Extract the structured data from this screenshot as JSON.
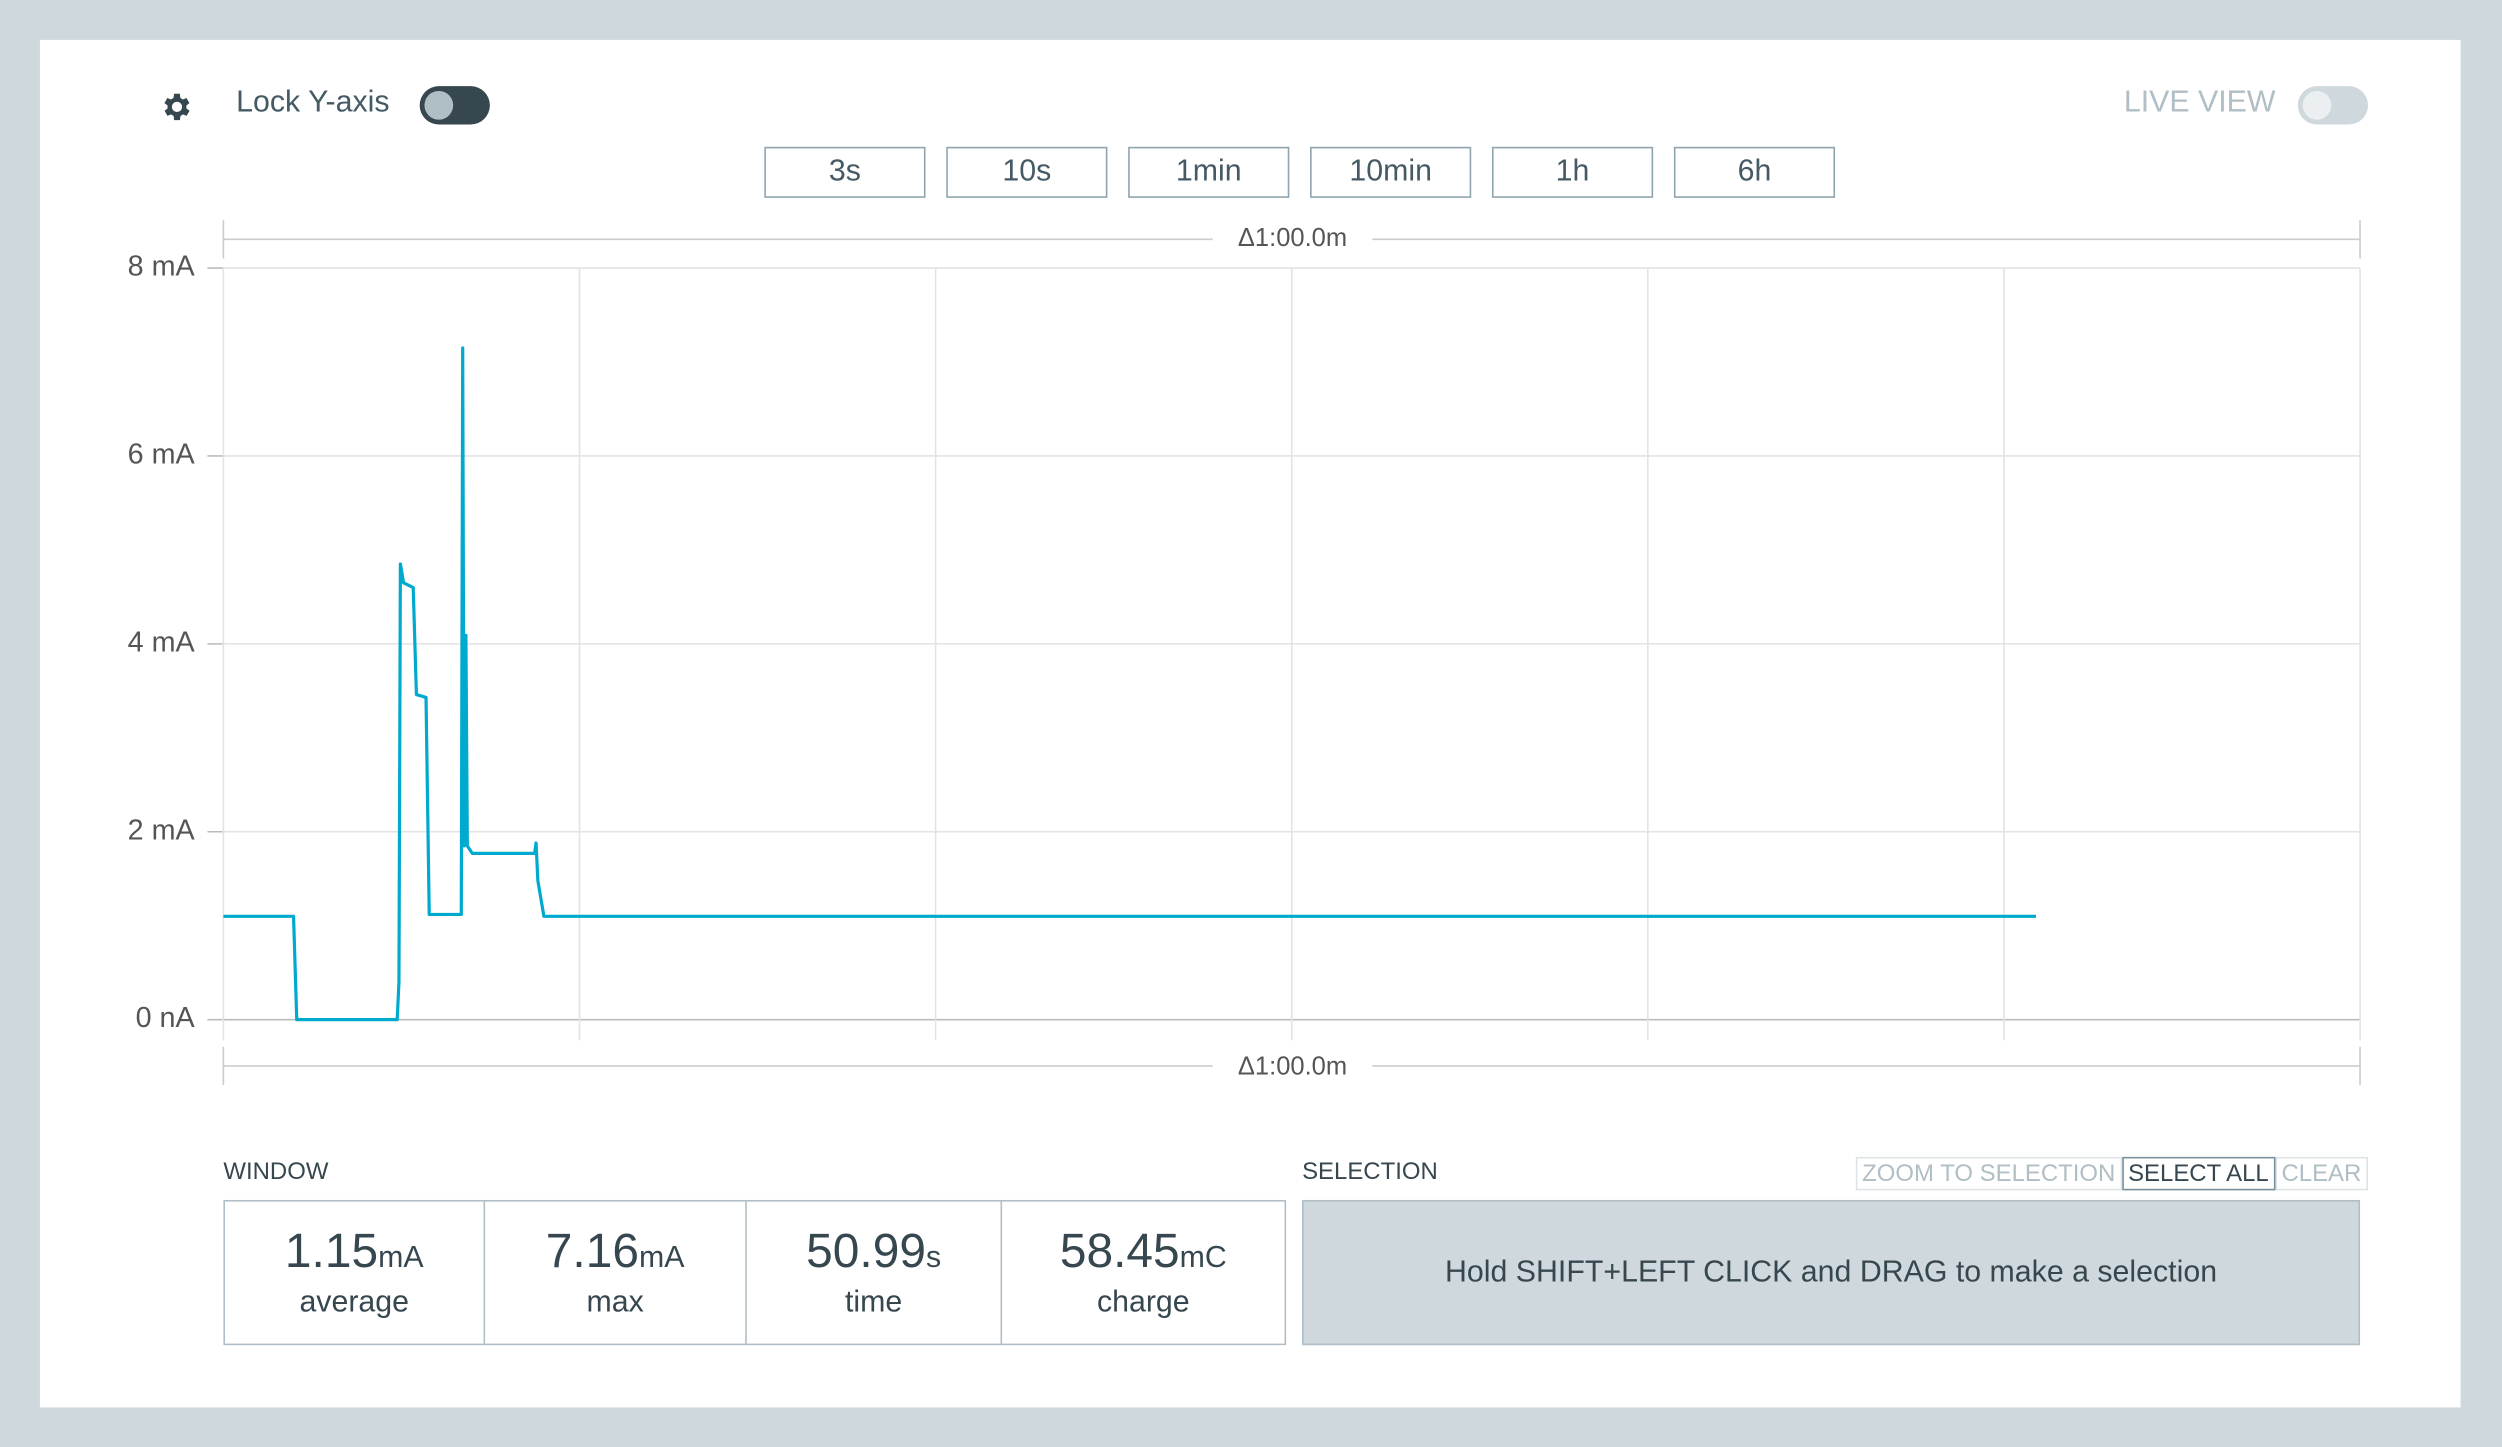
{
  "toolbar": {
    "lock_label": "Lock Y-axis",
    "live_view_label": "LIVE VIEW",
    "time_buttons": [
      "3s",
      "10s",
      "1min",
      "10min",
      "1h",
      "6h"
    ]
  },
  "chart_data": {
    "type": "line",
    "span_label": "Δ1:00.0m",
    "color": "#00a9ce",
    "x": [
      0,
      1.97,
      2.06,
      4.88,
      4.93,
      4.97,
      5.06,
      5.33,
      5.42,
      5.69,
      5.78,
      6.68,
      6.72,
      6.76,
      6.81,
      6.85,
      6.99,
      8.74,
      8.78,
      8.83,
      9.0,
      50.9
    ],
    "values": [
      1.1,
      1.1,
      0,
      0,
      0.4,
      4.85,
      4.65,
      4.6,
      3.46,
      3.43,
      1.12,
      1.12,
      7.15,
      1.85,
      4.09,
      1.85,
      1.77,
      1.77,
      1.88,
      1.48,
      1.1,
      1.1
    ],
    "xlim": [
      0,
      60
    ],
    "xticks": [
      0,
      10,
      20,
      30,
      40,
      50,
      60
    ],
    "ylim": [
      0,
      8
    ],
    "yticks": [
      {
        "value": 0,
        "label": "0 nA"
      },
      {
        "value": 2,
        "label": "2 mA"
      },
      {
        "value": 4,
        "label": "4 mA"
      },
      {
        "value": 6,
        "label": "6 mA"
      },
      {
        "value": 8,
        "label": "8 mA"
      }
    ],
    "grid": true
  },
  "window": {
    "title": "WINDOW",
    "stats": [
      {
        "value": 1.15,
        "unit": "mA",
        "label": "average"
      },
      {
        "value": 7.16,
        "unit": "mA",
        "label": "max"
      },
      {
        "value": 50.99,
        "unit": "s",
        "label": "time"
      },
      {
        "value": 58.45,
        "unit": "mC",
        "label": "charge"
      }
    ]
  },
  "selection": {
    "title": "SELECTION",
    "buttons": [
      "ZOOM TO SELECTION",
      "SELECT ALL",
      "CLEAR"
    ],
    "hint": "Hold SHIFT+LEFT CLICK and DRAG to make a selection"
  }
}
